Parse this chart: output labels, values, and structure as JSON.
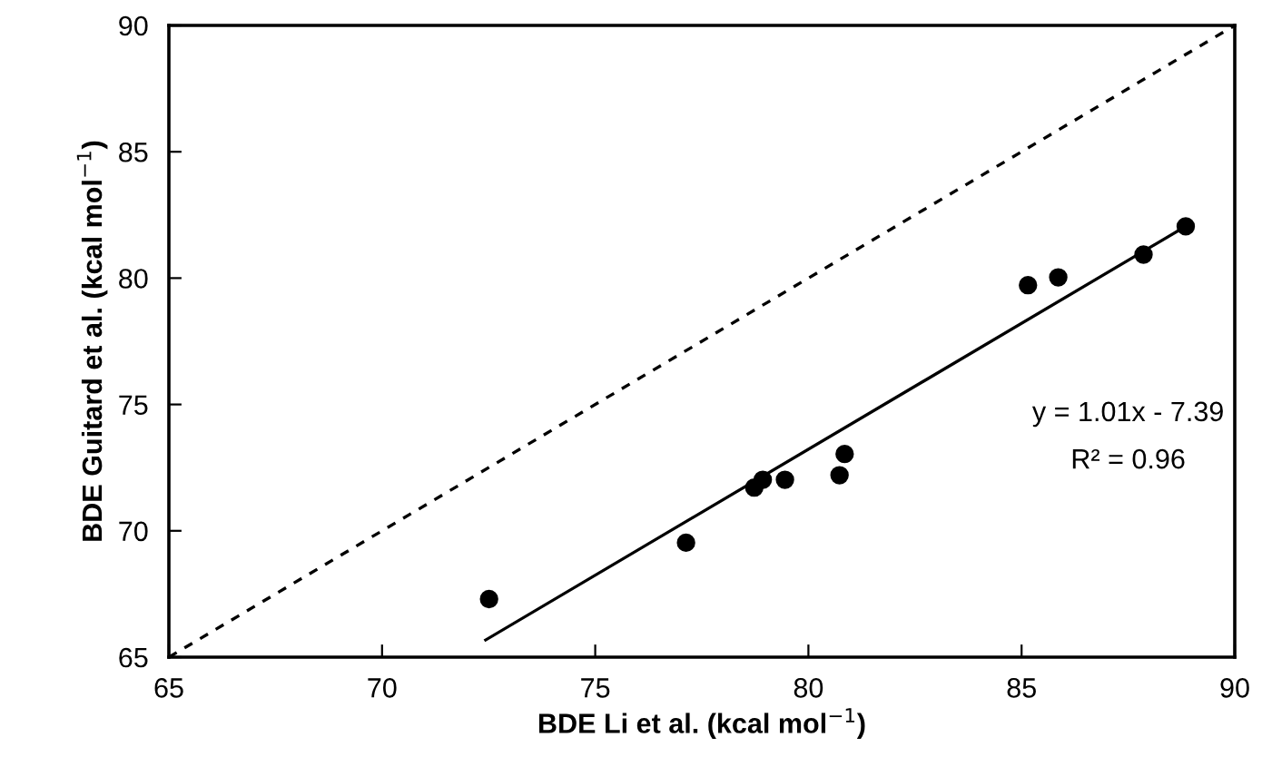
{
  "chart_data": {
    "type": "scatter",
    "xlabel": "BDE Li et al. (kcal mol$^{−1}$)",
    "ylabel": "BDE Guitard et al. (kcal mol$^{−1}$)",
    "xlim": [
      65,
      90
    ],
    "xticks": [
      65,
      70,
      75,
      80,
      85,
      90
    ],
    "ylim": [
      65,
      90
    ],
    "yticks": [
      65,
      70,
      75,
      80,
      85,
      90
    ],
    "grid": false,
    "legend": false,
    "series": [
      {
        "marker": "circle",
        "color": "#000000",
        "x": [
          72.51,
          77.13,
          78.73,
          78.93,
          79.45,
          80.73,
          80.85,
          85.15,
          85.86,
          87.86,
          88.85
        ],
        "values": [
          67.3,
          69.53,
          71.71,
          72.02,
          72.02,
          72.2,
          73.04,
          79.72,
          80.03,
          80.93,
          82.05
        ]
      },
      {
        "type": "line",
        "color": "#000000",
        "line_style": "solid",
        "marker": "none",
        "x": [
          72.43,
          88.85
        ],
        "values": [
          65.68,
          82.05
        ]
      },
      {
        "type": "line",
        "color": "#000000",
        "line_style": "dashed",
        "marker": "none",
        "x": [
          65,
          90
        ],
        "values": [
          65,
          90
        ]
      }
    ],
    "annotations": [
      "y = 1.01x - 7.39",
      "R² = 0.96"
    ]
  }
}
